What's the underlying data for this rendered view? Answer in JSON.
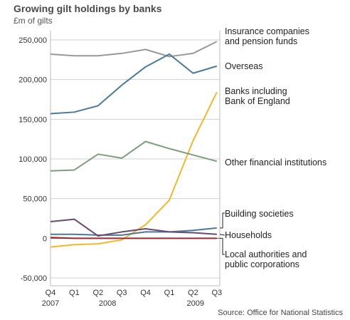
{
  "chart_data": {
    "type": "line",
    "title": "Growing gilt holdings by banks",
    "subtitle": "£m of gilts",
    "source": "Source: Office for National Statistics",
    "categories": [
      "Q4",
      "Q1",
      "Q2",
      "Q3",
      "Q4",
      "Q1",
      "Q2",
      "Q3"
    ],
    "year_labels": [
      "2007",
      "2008",
      "2009"
    ],
    "ylim": [
      -50000,
      250000
    ],
    "yticks": [
      250000,
      200000,
      150000,
      100000,
      50000,
      0,
      -50000
    ],
    "ytick_labels": [
      "250,000",
      "200,000",
      "150,000",
      "100,000",
      "50,000",
      "0",
      "-50,000"
    ],
    "grid": true,
    "series": [
      {
        "name": "Insurance companies and pension funds",
        "label_lines": [
          "Insurance companies",
          "and pension funds"
        ],
        "color": "#999999",
        "values": [
          232000,
          230000,
          230000,
          233000,
          238000,
          229000,
          233000,
          248000
        ]
      },
      {
        "name": "Overseas",
        "label_lines": [
          "Overseas"
        ],
        "color": "#4a7a96",
        "values": [
          157000,
          159000,
          167000,
          193000,
          216000,
          232000,
          208000,
          217000
        ]
      },
      {
        "name": "Banks including Bank of England",
        "label_lines": [
          "Banks including",
          "Bank of England"
        ],
        "color": "#f2b827",
        "values": [
          -11000,
          -8000,
          -7000,
          -2000,
          17000,
          48000,
          123000,
          184000
        ]
      },
      {
        "name": "Other financial institutions",
        "label_lines": [
          "Other financial institutions"
        ],
        "color": "#7e9e7e",
        "values": [
          85000,
          86000,
          106000,
          101000,
          122000,
          113000,
          105000,
          97000
        ]
      },
      {
        "name": "Building societies",
        "label_lines": [
          "Building societies"
        ],
        "color": "#4a7a96",
        "values": [
          5000,
          5000,
          4000,
          4000,
          8000,
          8000,
          10000,
          13000
        ]
      },
      {
        "name": "Households",
        "label_lines": [
          "Households"
        ],
        "color": "#6b4a6e",
        "values": [
          21000,
          24000,
          3000,
          8000,
          12000,
          8000,
          7000,
          5000
        ]
      },
      {
        "name": "Local authorities and public corporations",
        "label_lines": [
          "Local authorities and",
          "public corporations"
        ],
        "color": "#a8242c",
        "values": [
          1000,
          0,
          0,
          0,
          0,
          0,
          0,
          0
        ]
      }
    ]
  }
}
